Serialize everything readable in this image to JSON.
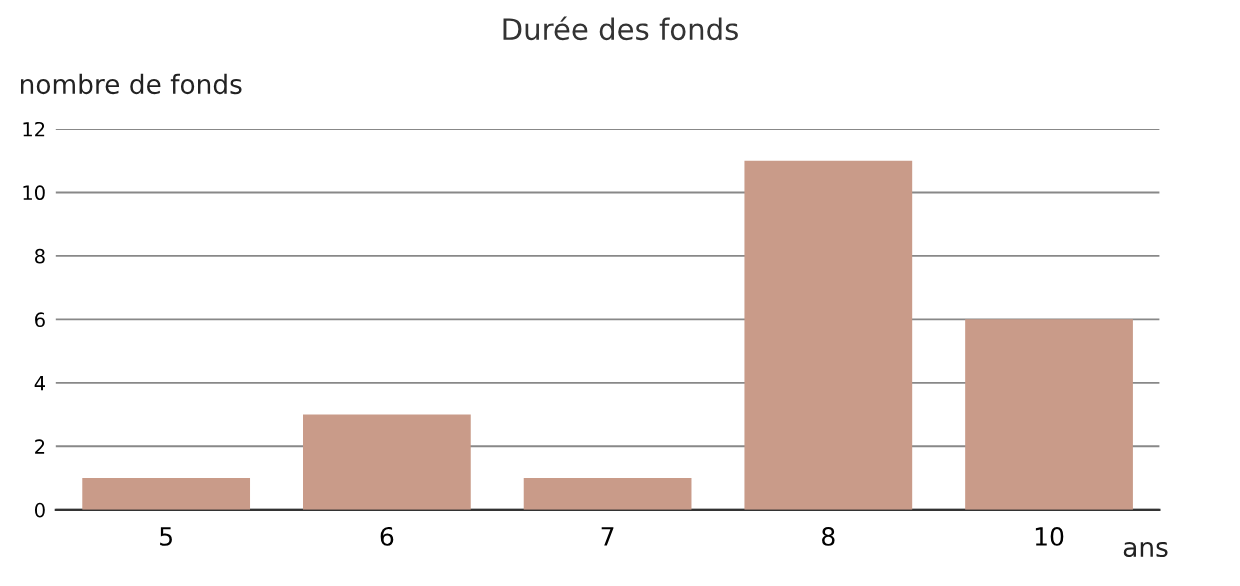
{
  "chart_data": {
    "type": "bar",
    "title": "Durée des fonds",
    "ylabel": "nombre de fonds",
    "xlabel": "ans",
    "categories": [
      "5",
      "6",
      "7",
      "8",
      "10"
    ],
    "values": [
      1,
      3,
      1,
      11,
      6
    ],
    "color": "#c99b89",
    "ylim": [
      0,
      12
    ],
    "yticks": [
      0,
      2,
      4,
      6,
      8,
      10,
      12
    ],
    "grid": "y"
  }
}
